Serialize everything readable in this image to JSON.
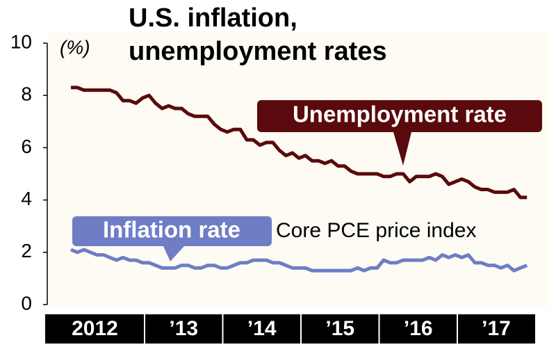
{
  "chart_data": {
    "type": "line",
    "title": [
      "U.S. inflation,",
      "unemployment rates"
    ],
    "y_unit": "(%)",
    "annotation": "Core PCE price index",
    "categories": [
      "2012",
      null,
      null,
      null,
      null,
      null,
      null,
      null,
      null,
      null,
      null,
      null,
      "’13",
      null,
      null,
      null,
      null,
      null,
      null,
      null,
      null,
      null,
      null,
      null,
      "’14",
      null,
      null,
      null,
      null,
      null,
      null,
      null,
      null,
      null,
      null,
      null,
      "’15",
      null,
      null,
      null,
      null,
      null,
      null,
      null,
      null,
      null,
      null,
      null,
      "’16",
      null,
      null,
      null,
      null,
      null,
      null,
      null,
      null,
      null,
      null,
      null,
      "’17",
      null,
      null,
      null,
      null,
      null,
      null,
      null,
      null,
      null,
      null
    ],
    "series": [
      {
        "name": "Unemployment rate",
        "color": "#5a0a0c",
        "values": [
          8.3,
          8.3,
          8.2,
          8.2,
          8.2,
          8.2,
          8.2,
          8.1,
          7.8,
          7.8,
          7.7,
          7.9,
          8.0,
          7.7,
          7.5,
          7.6,
          7.5,
          7.5,
          7.3,
          7.2,
          7.2,
          7.2,
          6.9,
          6.7,
          6.6,
          6.7,
          6.7,
          6.3,
          6.3,
          6.1,
          6.2,
          6.2,
          5.9,
          5.7,
          5.8,
          5.6,
          5.7,
          5.5,
          5.5,
          5.4,
          5.5,
          5.3,
          5.3,
          5.1,
          5.0,
          5.0,
          5.0,
          5.0,
          4.9,
          4.9,
          5.0,
          5.0,
          4.7,
          4.9,
          4.9,
          4.9,
          5.0,
          4.9,
          4.6,
          4.7,
          4.8,
          4.7,
          4.5,
          4.4,
          4.4,
          4.3,
          4.3,
          4.3,
          4.4,
          4.1,
          4.1
        ]
      },
      {
        "name": "Inflation rate",
        "color": "#6f7dc6",
        "values": [
          2.1,
          2.0,
          2.1,
          2.0,
          1.9,
          1.9,
          1.8,
          1.7,
          1.8,
          1.7,
          1.7,
          1.6,
          1.6,
          1.5,
          1.4,
          1.4,
          1.4,
          1.5,
          1.5,
          1.4,
          1.4,
          1.5,
          1.5,
          1.4,
          1.4,
          1.5,
          1.6,
          1.6,
          1.7,
          1.7,
          1.7,
          1.6,
          1.6,
          1.5,
          1.4,
          1.4,
          1.4,
          1.3,
          1.3,
          1.3,
          1.3,
          1.3,
          1.3,
          1.3,
          1.4,
          1.3,
          1.4,
          1.4,
          1.7,
          1.6,
          1.6,
          1.7,
          1.7,
          1.7,
          1.7,
          1.8,
          1.7,
          1.9,
          1.8,
          1.9,
          1.8,
          1.9,
          1.6,
          1.6,
          1.5,
          1.5,
          1.4,
          1.5,
          1.3,
          1.4,
          1.5
        ]
      }
    ],
    "ylim": [
      0,
      10
    ],
    "yticks": [
      0,
      2,
      4,
      6,
      8,
      10
    ],
    "grid": false
  }
}
